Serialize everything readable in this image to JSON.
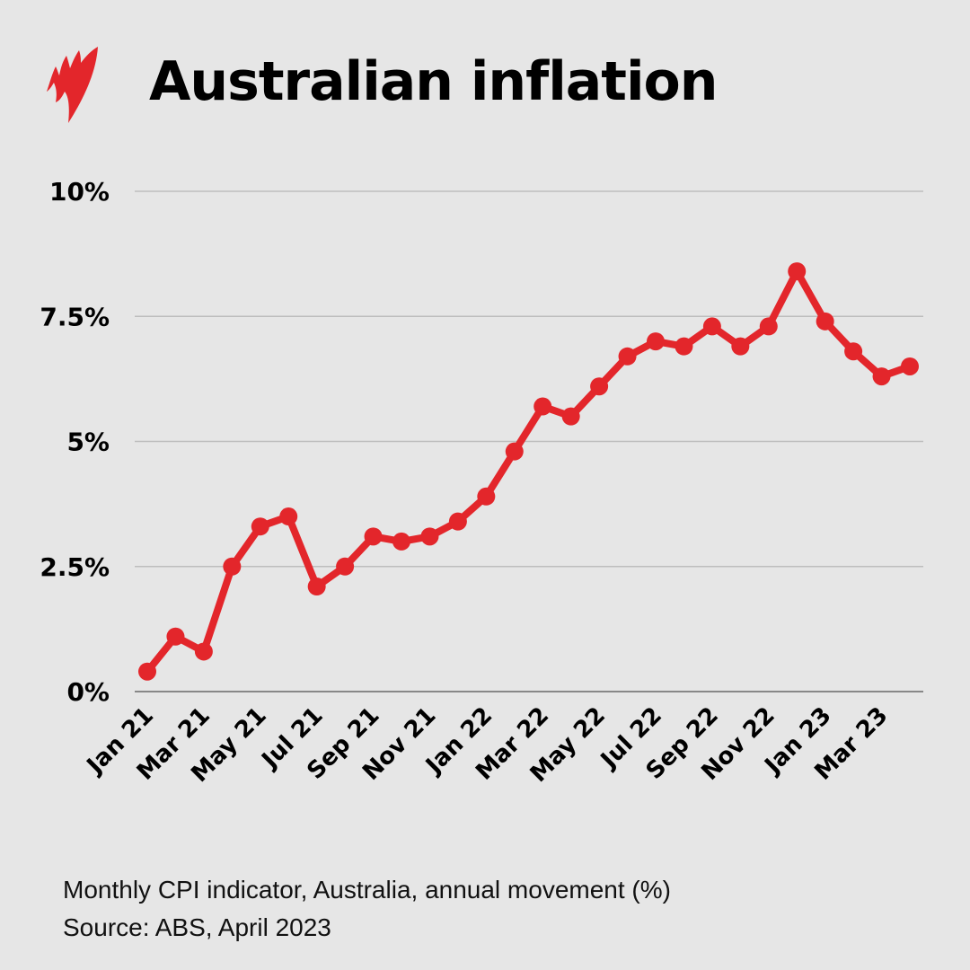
{
  "title": "Australian inflation",
  "logo": "SBS",
  "footnote": "Monthly CPI indicator, Australia, annual movement (%)",
  "source": "Source: ABS, April 2023",
  "chart_data": {
    "type": "line",
    "title": "Australian inflation",
    "x": [
      "Jan 21",
      "Feb 21",
      "Mar 21",
      "Apr 21",
      "May 21",
      "Jun 21",
      "Jul 21",
      "Aug 21",
      "Sep 21",
      "Oct 21",
      "Nov 21",
      "Dec 21",
      "Jan 22",
      "Feb 22",
      "Mar 22",
      "Apr 22",
      "May 22",
      "Jun 22",
      "Jul 22",
      "Aug 22",
      "Sep 22",
      "Oct 22",
      "Nov 22",
      "Dec 22",
      "Jan 23",
      "Feb 23",
      "Mar 23",
      "Apr 23"
    ],
    "values": [
      0.4,
      1.1,
      0.8,
      2.5,
      3.3,
      3.5,
      2.1,
      2.5,
      3.1,
      3.0,
      3.1,
      3.4,
      3.9,
      4.8,
      5.7,
      5.5,
      6.1,
      6.7,
      7.0,
      6.9,
      7.3,
      6.9,
      7.3,
      8.4,
      7.4,
      6.8,
      6.3,
      6.5
    ],
    "x_tick_labels": [
      "Jan 21",
      "Mar 21",
      "May 21",
      "Jul 21",
      "Sep 21",
      "Nov 21",
      "Jan 22",
      "Mar 22",
      "May 22",
      "Jul 22",
      "Sep 22",
      "Nov 22",
      "Jan 23",
      "Mar 23"
    ],
    "y_ticks": [
      0,
      2.5,
      5,
      7.5,
      10
    ],
    "y_tick_labels": [
      "0%",
      "2.5%",
      "5%",
      "7.5%",
      "10%"
    ],
    "ylim": [
      0,
      10
    ],
    "grid": true,
    "line_color": "#e3262b"
  }
}
